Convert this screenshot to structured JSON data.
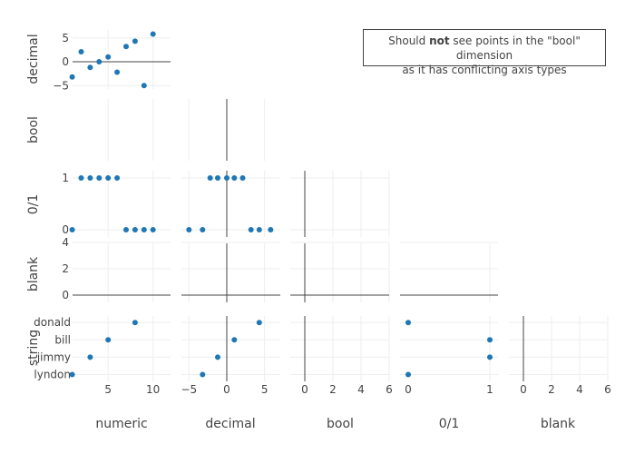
{
  "chart_data": {
    "type": "scatter",
    "subtype": "splom",
    "dimensions": [
      {
        "label": "numeric"
      },
      {
        "label": "decimal"
      },
      {
        "label": "bool"
      },
      {
        "label": "0/1"
      },
      {
        "label": "blank"
      },
      {
        "label": "string"
      }
    ],
    "series": [
      {
        "marker_color": "#1f77b4",
        "numeric": [
          1,
          2,
          3,
          4,
          5,
          6,
          7,
          8,
          9,
          10
        ],
        "decimal": [
          -3.2,
          2.1,
          -1.2,
          0,
          1,
          -2.2,
          3.2,
          4.3,
          -5,
          5.8
        ],
        "bool": [],
        "zero_one": [
          0,
          1,
          1,
          1,
          1,
          1,
          0,
          0,
          0,
          0
        ],
        "blank": [],
        "string": [
          "lyndon",
          "-",
          "jimmy",
          "-",
          "bill",
          "-",
          "-",
          "donald",
          "-",
          "-"
        ],
        "string_categories": [
          "lyndon",
          "jimmy",
          "bill",
          "donald"
        ]
      }
    ],
    "axes": {
      "numeric": {
        "ticks": [
          5,
          10
        ]
      },
      "decimal": {
        "ticks": [
          -5,
          0,
          5
        ]
      },
      "bool": {
        "ticks": [
          0,
          2,
          4,
          6
        ]
      },
      "zero_one": {
        "ticks": [
          0,
          1
        ]
      },
      "blank": {
        "ticks": [
          0,
          2,
          4
        ]
      },
      "blank_x": {
        "ticks": [
          0,
          2,
          4,
          6
        ]
      }
    },
    "grid": true,
    "diagonal": false,
    "show_upper_half": false
  },
  "annotation": {
    "before": "Should ",
    "bold": "not",
    "line1_after": " see points in the \"bool\" dimension",
    "line2": "as it has conflicting axis types"
  }
}
